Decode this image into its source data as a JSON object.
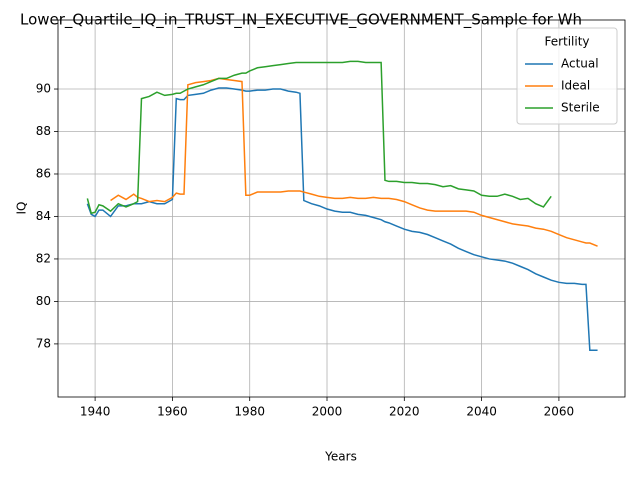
{
  "chart_data": {
    "type": "line",
    "title": "Lower_Quartile_IQ_in_TRUST_IN_EXECUTIVE_GOVERNMENT_Sample for Wh",
    "x_label": "Years",
    "y_label": "IQ",
    "legend_title": "Fertility",
    "legend_position": "upper right",
    "grid": true,
    "xlim": [
      1930.4,
      2077.1
    ],
    "ylim": [
      75.5,
      93.25
    ],
    "xticks": [
      1940,
      1960,
      1980,
      2000,
      2020,
      2040,
      2060
    ],
    "yticks": [
      78,
      80,
      82,
      84,
      86,
      88,
      90
    ],
    "x": [
      1938,
      1939,
      1940,
      1941,
      1942,
      1944,
      1946,
      1948,
      1950,
      1951,
      1952,
      1954,
      1956,
      1958,
      1960,
      1961,
      1962,
      1963,
      1964,
      1966,
      1968,
      1970,
      1972,
      1974,
      1976,
      1978,
      1979,
      1980,
      1982,
      1984,
      1986,
      1988,
      1990,
      1992,
      1993,
      1994,
      1996,
      1998,
      2000,
      2002,
      2004,
      2006,
      2008,
      2010,
      2012,
      2014,
      2015,
      2016,
      2018,
      2020,
      2022,
      2024,
      2026,
      2028,
      2030,
      2032,
      2034,
      2036,
      2038,
      2040,
      2042,
      2044,
      2046,
      2048,
      2050,
      2052,
      2054,
      2056,
      2058,
      2060,
      2062,
      2064,
      2066,
      2067,
      2068,
      2070
    ],
    "series": [
      {
        "name": "Actual",
        "color": "#1f77b4",
        "values": [
          84.6,
          84.1,
          84.0,
          84.3,
          84.3,
          84.0,
          84.5,
          84.5,
          84.6,
          84.6,
          84.6,
          84.7,
          84.6,
          84.6,
          84.8,
          89.55,
          89.5,
          89.5,
          89.7,
          89.75,
          89.8,
          89.95,
          90.05,
          90.05,
          90.0,
          89.95,
          89.9,
          89.9,
          89.95,
          89.95,
          90.0,
          90.0,
          89.9,
          89.85,
          89.8,
          84.75,
          84.6,
          84.5,
          84.35,
          84.25,
          84.2,
          84.2,
          84.1,
          84.05,
          83.95,
          83.85,
          83.75,
          83.7,
          83.55,
          83.4,
          83.3,
          83.25,
          83.15,
          83.0,
          82.85,
          82.7,
          82.5,
          82.35,
          82.2,
          82.1,
          82.0,
          81.95,
          81.9,
          81.8,
          81.65,
          81.5,
          81.3,
          81.15,
          81.0,
          80.9,
          80.85,
          80.85,
          80.8,
          80.8,
          77.7,
          77.7
        ]
      },
      {
        "name": "Ideal",
        "color": "#ff7f0e",
        "values": [
          null,
          null,
          null,
          null,
          null,
          84.75,
          85.0,
          84.8,
          85.05,
          84.9,
          84.85,
          84.7,
          84.75,
          84.7,
          84.9,
          85.1,
          85.05,
          85.05,
          90.2,
          90.3,
          90.35,
          90.4,
          90.5,
          90.45,
          90.4,
          90.35,
          85.0,
          85.0,
          85.15,
          85.15,
          85.15,
          85.15,
          85.2,
          85.2,
          85.2,
          85.15,
          85.05,
          84.95,
          84.9,
          84.85,
          84.85,
          84.9,
          84.85,
          84.85,
          84.9,
          84.85,
          84.85,
          84.85,
          84.8,
          84.7,
          84.55,
          84.4,
          84.3,
          84.25,
          84.25,
          84.25,
          84.25,
          84.25,
          84.2,
          84.05,
          83.95,
          83.85,
          83.75,
          83.65,
          83.6,
          83.55,
          83.45,
          83.4,
          83.3,
          83.15,
          83.0,
          82.9,
          82.8,
          82.75,
          82.75,
          82.6
        ]
      },
      {
        "name": "Sterile",
        "color": "#2ca02c",
        "values": [
          84.85,
          84.15,
          84.2,
          84.55,
          84.5,
          84.25,
          84.6,
          84.45,
          84.6,
          84.7,
          89.55,
          89.65,
          89.85,
          89.7,
          89.75,
          89.8,
          89.8,
          89.9,
          90.0,
          90.1,
          90.2,
          90.35,
          90.5,
          90.5,
          90.65,
          90.75,
          90.75,
          90.85,
          91.0,
          91.05,
          91.1,
          91.15,
          91.2,
          91.25,
          91.25,
          91.25,
          91.25,
          91.25,
          91.25,
          91.25,
          91.25,
          91.3,
          91.3,
          91.25,
          91.25,
          91.25,
          85.7,
          85.65,
          85.65,
          85.6,
          85.6,
          85.55,
          85.55,
          85.5,
          85.4,
          85.45,
          85.3,
          85.25,
          85.2,
          85.0,
          84.95,
          84.95,
          85.05,
          84.95,
          84.8,
          84.85,
          84.6,
          84.45,
          84.95,
          null,
          null,
          null,
          null,
          null,
          null,
          null
        ]
      }
    ]
  }
}
